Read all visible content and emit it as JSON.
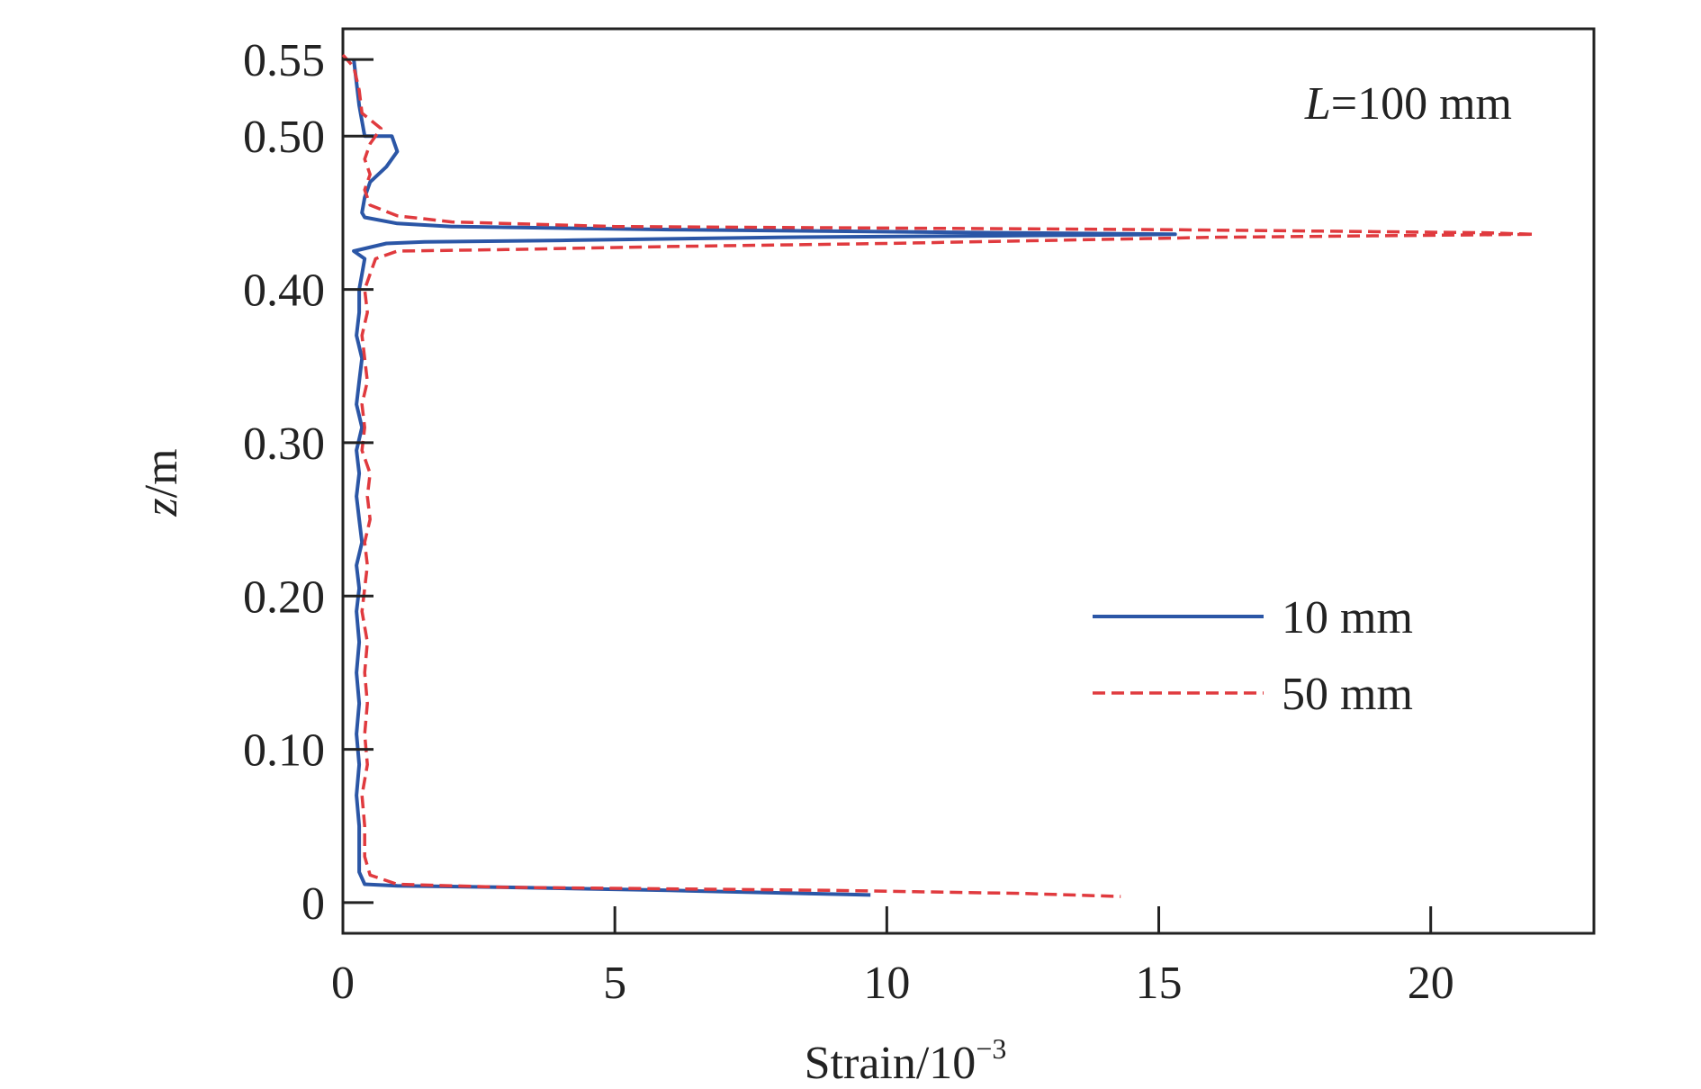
{
  "chart_data": {
    "type": "line",
    "title": "",
    "xlabel_base": "Strain/10",
    "xlabel_exp": "−3",
    "ylabel_italic": "z",
    "ylabel_unit": "/m",
    "annotation_italic": "L",
    "annotation_rest": "=100 mm",
    "xlim": [
      0,
      23
    ],
    "ylim": [
      -0.02,
      0.57
    ],
    "x_ticks": [
      0,
      5,
      10,
      15,
      20
    ],
    "x_tick_labels": [
      "0",
      "5",
      "10",
      "15",
      "20"
    ],
    "y_ticks": [
      0,
      0.1,
      0.2,
      0.3,
      0.4,
      0.5,
      0.55
    ],
    "y_tick_labels": [
      "0",
      "0.10",
      "0.20",
      "0.30",
      "0.40",
      "0.50",
      "0.55"
    ],
    "grid": false,
    "legend_position": "center-right",
    "colors": {
      "blue": "#2b56a6",
      "red": "#e03a3e",
      "axis": "#222222"
    },
    "series": [
      {
        "name": "10 mm",
        "color": "#2b56a6",
        "dash": "solid",
        "points": [
          [
            0.2,
            0.55
          ],
          [
            0.3,
            0.52
          ],
          [
            0.4,
            0.5
          ],
          [
            0.9,
            0.5
          ],
          [
            1.0,
            0.49
          ],
          [
            0.8,
            0.48
          ],
          [
            0.5,
            0.47
          ],
          [
            0.4,
            0.46
          ],
          [
            0.35,
            0.45
          ],
          [
            0.4,
            0.447
          ],
          [
            1.0,
            0.443
          ],
          [
            2.0,
            0.441
          ],
          [
            6.0,
            0.439
          ],
          [
            12.0,
            0.437
          ],
          [
            15.3,
            0.436
          ],
          [
            12.0,
            0.435
          ],
          [
            8.0,
            0.434
          ],
          [
            4.0,
            0.432
          ],
          [
            1.5,
            0.431
          ],
          [
            0.8,
            0.43
          ],
          [
            0.2,
            0.425
          ],
          [
            0.4,
            0.42
          ],
          [
            0.35,
            0.41
          ],
          [
            0.3,
            0.4
          ],
          [
            0.3,
            0.385
          ],
          [
            0.25,
            0.37
          ],
          [
            0.35,
            0.355
          ],
          [
            0.3,
            0.34
          ],
          [
            0.25,
            0.325
          ],
          [
            0.35,
            0.31
          ],
          [
            0.25,
            0.295
          ],
          [
            0.3,
            0.28
          ],
          [
            0.25,
            0.265
          ],
          [
            0.3,
            0.25
          ],
          [
            0.35,
            0.235
          ],
          [
            0.25,
            0.22
          ],
          [
            0.3,
            0.205
          ],
          [
            0.25,
            0.19
          ],
          [
            0.3,
            0.17
          ],
          [
            0.25,
            0.15
          ],
          [
            0.3,
            0.13
          ],
          [
            0.25,
            0.11
          ],
          [
            0.3,
            0.09
          ],
          [
            0.25,
            0.07
          ],
          [
            0.3,
            0.05
          ],
          [
            0.3,
            0.03
          ],
          [
            0.3,
            0.02
          ],
          [
            0.4,
            0.012
          ],
          [
            1.0,
            0.011
          ],
          [
            3.0,
            0.01
          ],
          [
            6.0,
            0.008
          ],
          [
            9.7,
            0.005
          ]
        ]
      },
      {
        "name": "50 mm",
        "color": "#e03a3e",
        "dash": "dashed",
        "points": [
          [
            0.0,
            0.553
          ],
          [
            0.2,
            0.545
          ],
          [
            0.3,
            0.53
          ],
          [
            0.35,
            0.515
          ],
          [
            0.7,
            0.505
          ],
          [
            0.5,
            0.495
          ],
          [
            0.4,
            0.485
          ],
          [
            0.5,
            0.475
          ],
          [
            0.4,
            0.465
          ],
          [
            0.5,
            0.455
          ],
          [
            1.0,
            0.448
          ],
          [
            2.0,
            0.444
          ],
          [
            5.0,
            0.441
          ],
          [
            10.0,
            0.44
          ],
          [
            15.0,
            0.439
          ],
          [
            18.0,
            0.438
          ],
          [
            21.0,
            0.437
          ],
          [
            21.9,
            0.436
          ],
          [
            19.0,
            0.435
          ],
          [
            16.0,
            0.434
          ],
          [
            13.0,
            0.432
          ],
          [
            10.0,
            0.43
          ],
          [
            6.0,
            0.428
          ],
          [
            3.0,
            0.426
          ],
          [
            1.0,
            0.425
          ],
          [
            0.6,
            0.42
          ],
          [
            0.5,
            0.41
          ],
          [
            0.4,
            0.4
          ],
          [
            0.45,
            0.385
          ],
          [
            0.35,
            0.37
          ],
          [
            0.4,
            0.355
          ],
          [
            0.45,
            0.34
          ],
          [
            0.35,
            0.325
          ],
          [
            0.4,
            0.31
          ],
          [
            0.35,
            0.295
          ],
          [
            0.5,
            0.28
          ],
          [
            0.45,
            0.265
          ],
          [
            0.5,
            0.25
          ],
          [
            0.4,
            0.235
          ],
          [
            0.45,
            0.22
          ],
          [
            0.4,
            0.205
          ],
          [
            0.35,
            0.19
          ],
          [
            0.45,
            0.17
          ],
          [
            0.4,
            0.15
          ],
          [
            0.45,
            0.13
          ],
          [
            0.4,
            0.11
          ],
          [
            0.45,
            0.09
          ],
          [
            0.35,
            0.07
          ],
          [
            0.4,
            0.05
          ],
          [
            0.4,
            0.03
          ],
          [
            0.5,
            0.018
          ],
          [
            1.0,
            0.012
          ],
          [
            3.0,
            0.01
          ],
          [
            6.0,
            0.009
          ],
          [
            9.0,
            0.008
          ],
          [
            12.5,
            0.006
          ],
          [
            14.3,
            0.004
          ]
        ]
      }
    ]
  }
}
